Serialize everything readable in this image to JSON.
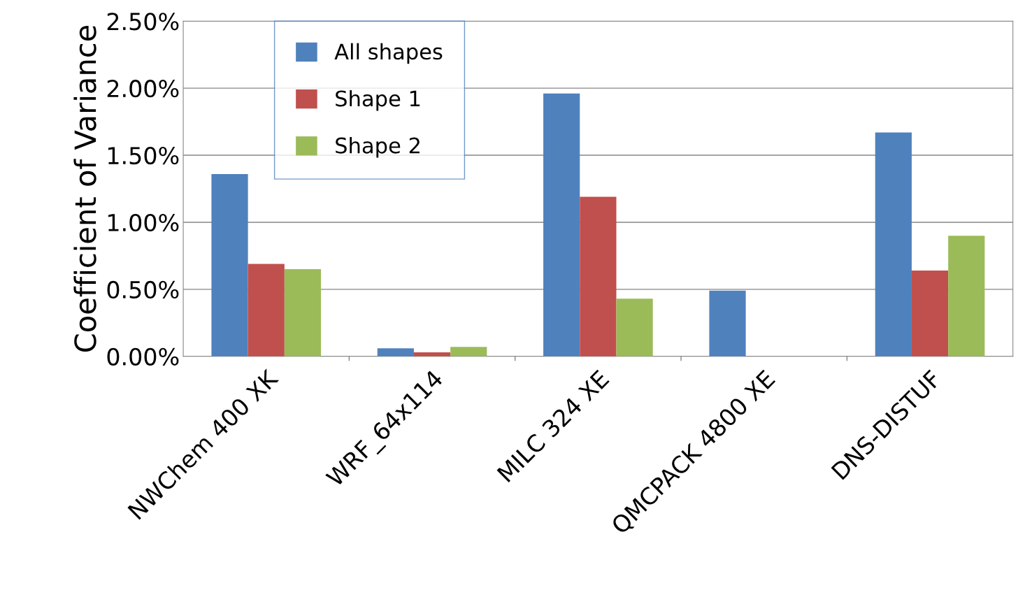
{
  "chart_data": {
    "type": "bar",
    "ylabel": "Coefficient of Variance",
    "categories": [
      "NWChem 400 XK",
      "WRF_64x114",
      "MILC 324 XE",
      "QMCPACK 4800 XE",
      "DNS-DISTUF"
    ],
    "series": [
      {
        "name": "All shapes",
        "color": "#4f81bd",
        "values": [
          1.36,
          0.06,
          1.96,
          0.49,
          1.67
        ]
      },
      {
        "name": "Shape 1",
        "color": "#c0504d",
        "values": [
          0.69,
          0.03,
          1.19,
          0,
          0.64
        ]
      },
      {
        "name": "Shape 2",
        "color": "#9bbb59",
        "values": [
          0.65,
          0.07,
          0.43,
          0,
          0.9
        ]
      }
    ],
    "ylim": [
      0,
      2.5
    ],
    "yticks": [
      {
        "value": 0,
        "label": "0.00%"
      },
      {
        "value": 0.5,
        "label": "0.50%"
      },
      {
        "value": 1,
        "label": "1.00%"
      },
      {
        "value": 1.5,
        "label": "1.50%"
      },
      {
        "value": 2,
        "label": "2.00%"
      },
      {
        "value": 2.5,
        "label": "2.50%"
      }
    ],
    "grid": "y",
    "legend": "top left"
  }
}
